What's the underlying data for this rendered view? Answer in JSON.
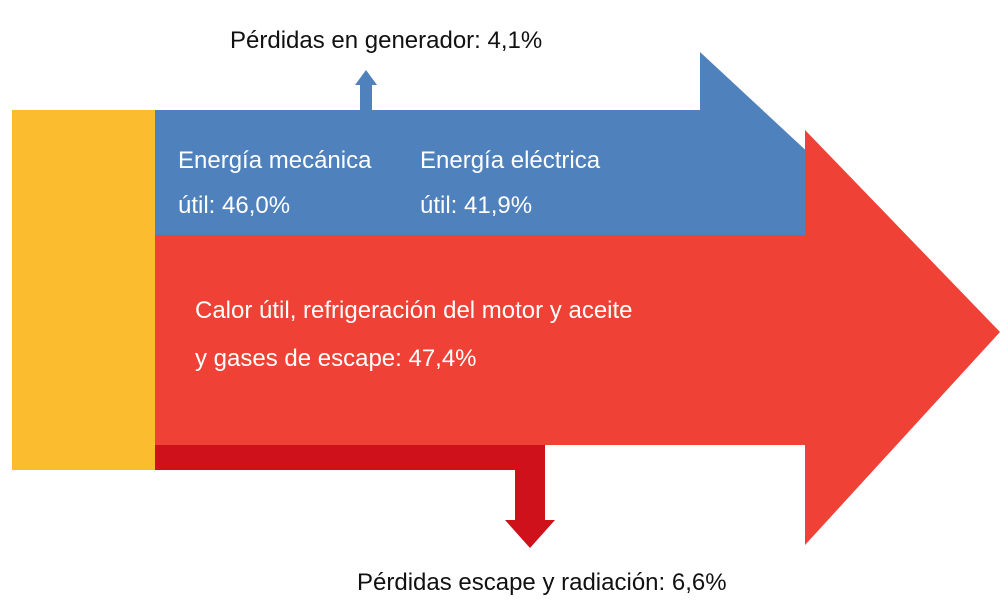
{
  "labels": {
    "generator_loss": "Pérdidas en generador: 4,1%",
    "mechanical": [
      "Energía mecánica",
      "útil: 46,0%"
    ],
    "electrical": [
      "Energía eléctrica",
      "útil: 41,9%"
    ],
    "heat": [
      "Calor útil, refrigeración del motor y aceite",
      "y gases de escape: 47,4%"
    ],
    "exhaust_loss": "Pérdidas escape y radiación: 6,6%"
  }
}
